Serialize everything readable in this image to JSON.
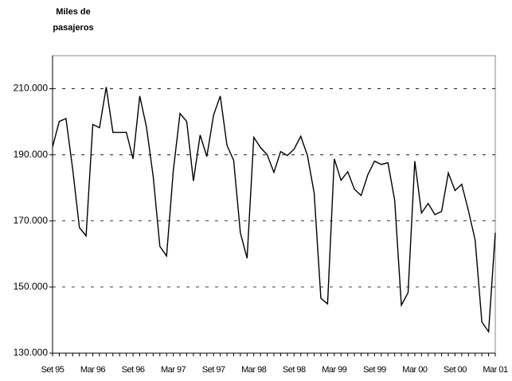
{
  "chart_data": {
    "type": "line",
    "ylabel": [
      "Miles de",
      "pasajeros"
    ],
    "categories": [
      "Set 95",
      null,
      null,
      null,
      null,
      null,
      "Mar 96",
      null,
      null,
      null,
      null,
      null,
      "Set 96",
      null,
      null,
      null,
      null,
      null,
      "Mar 97",
      null,
      null,
      null,
      null,
      null,
      "Set 97",
      null,
      null,
      null,
      null,
      null,
      "Mar 98",
      null,
      null,
      null,
      null,
      null,
      "Set 98",
      null,
      null,
      null,
      null,
      null,
      "Mar 99",
      null,
      null,
      null,
      null,
      null,
      "Set 99",
      null,
      null,
      null,
      null,
      null,
      "Mar 00",
      null,
      null,
      null,
      null,
      null,
      "Set 00",
      null,
      null,
      null,
      null,
      null,
      "Mar 01"
    ],
    "series": [
      {
        "color": "#000000",
        "values": [
          192400,
          200100,
          201000,
          185700,
          168000,
          165500,
          199200,
          198200,
          210500,
          196800,
          196800,
          196800,
          188800,
          207800,
          198400,
          183500,
          162300,
          159400,
          185200,
          202500,
          200100,
          182100,
          196000,
          189500,
          202000,
          207800,
          192900,
          188300,
          166400,
          158700,
          195300,
          192200,
          190000,
          184700,
          191000,
          189800,
          191700,
          195600,
          189800,
          178400,
          146600,
          144900,
          188800,
          182300,
          184900,
          179600,
          177700,
          184000,
          188100,
          187100,
          187600,
          176300,
          144500,
          148300,
          188100,
          172400,
          175300,
          171900,
          172900,
          184500,
          179200,
          181100,
          173100,
          164200,
          139400,
          136500,
          166400
        ]
      }
    ],
    "ylim": [
      130000,
      220000
    ],
    "yticks": [
      {
        "value": 130000,
        "label": "130.000"
      },
      {
        "value": 150000,
        "label": "150.000"
      },
      {
        "value": 170000,
        "label": "170.000"
      },
      {
        "value": 190000,
        "label": "190.000"
      },
      {
        "value": 210000,
        "label": "210.000"
      }
    ],
    "grid": true
  }
}
